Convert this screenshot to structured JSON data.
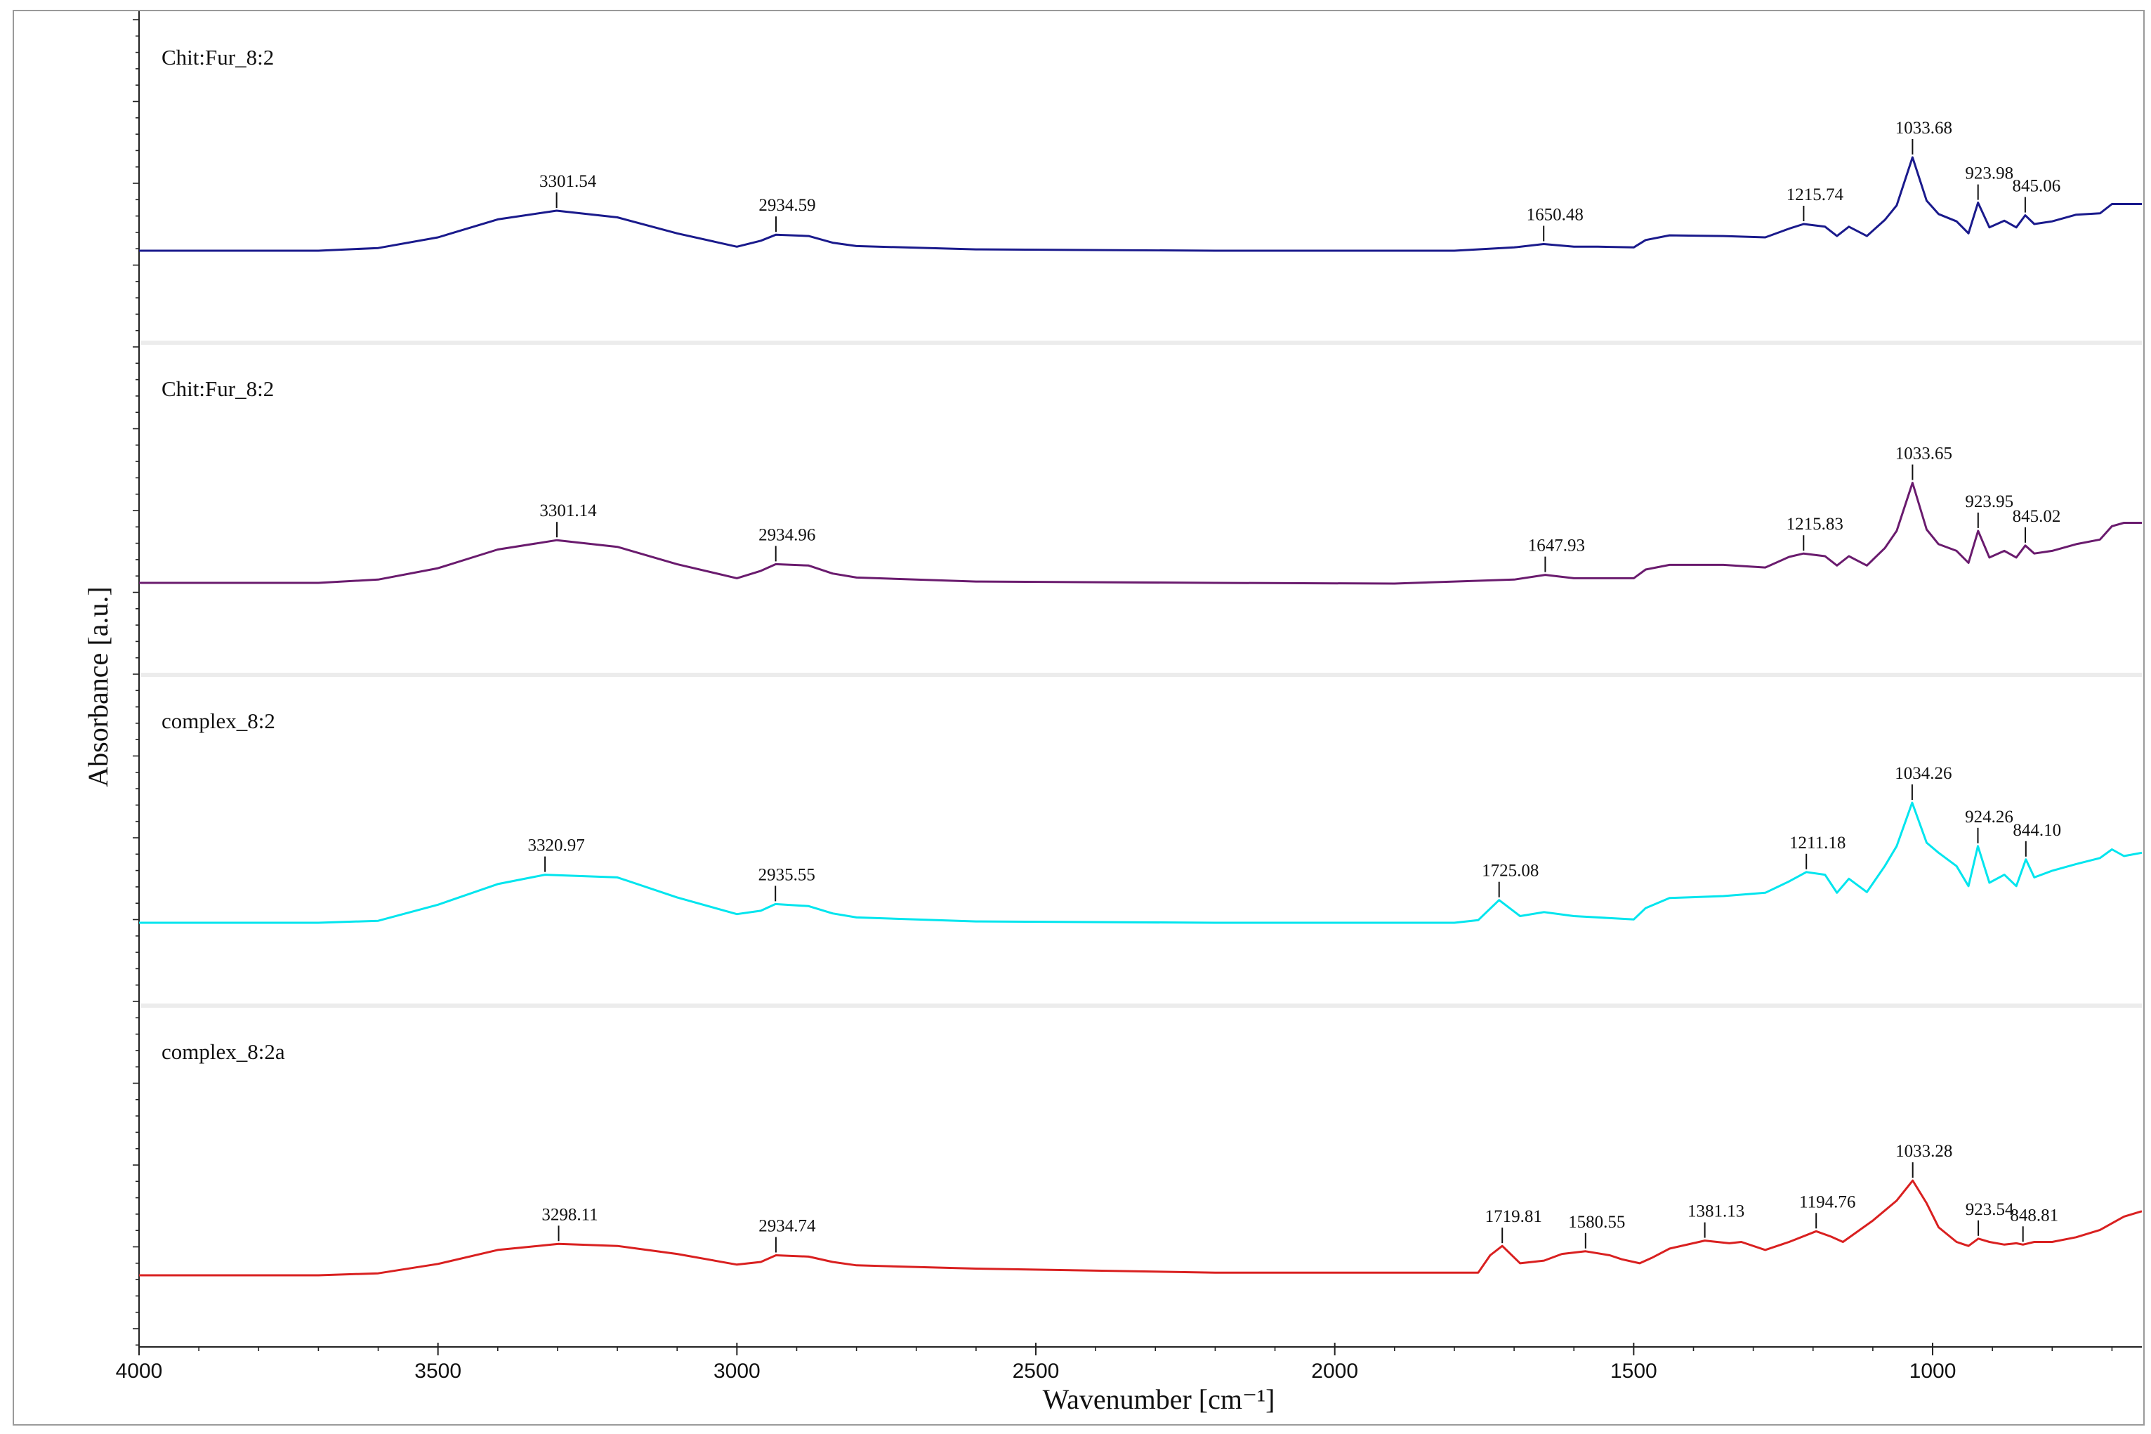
{
  "chart_data": {
    "type": "line",
    "title": "",
    "xlabel": "Wavenumber [cm⁻¹]",
    "ylabel": "Absorbance [a.u.]",
    "x_reversed": true,
    "xlim": [
      4000,
      650
    ],
    "x_ticks": [
      4000,
      3500,
      3000,
      2500,
      2000,
      1500,
      1000
    ],
    "grid": false,
    "legend": "none",
    "series": [
      {
        "name": "Chit:Fur_8:2",
        "color": "#1a1a8c",
        "x": [
          4000,
          3700,
          3600,
          3500,
          3400,
          3301.54,
          3200,
          3100,
          3000,
          2960,
          2934.59,
          2880,
          2840,
          2800,
          2600,
          2200,
          1800,
          1700,
          1650.48,
          1600,
          1560,
          1500,
          1480,
          1440,
          1350,
          1280,
          1240,
          1215.74,
          1180,
          1160,
          1140,
          1110,
          1080,
          1060,
          1033.68,
          1010,
          990,
          960,
          940,
          923.98,
          905,
          880,
          860,
          845.06,
          830,
          800,
          760,
          720,
          700,
          680,
          650
        ],
        "y": [
          0,
          0,
          0.04,
          0.2,
          0.47,
          0.6,
          0.5,
          0.26,
          0.06,
          0.15,
          0.24,
          0.22,
          0.12,
          0.07,
          0.02,
          0,
          0,
          0.05,
          0.1,
          0.06,
          0.06,
          0.05,
          0.16,
          0.23,
          0.22,
          0.2,
          0.33,
          0.4,
          0.36,
          0.22,
          0.36,
          0.22,
          0.46,
          0.68,
          1.4,
          0.75,
          0.55,
          0.44,
          0.26,
          0.72,
          0.35,
          0.45,
          0.35,
          0.53,
          0.4,
          0.44,
          0.54,
          0.56,
          0.7,
          0.7,
          0.7
        ]
      },
      {
        "name": "Chit:Fur_8:2",
        "color": "#6a1b6e",
        "x": [
          4000,
          3700,
          3600,
          3500,
          3400,
          3301.14,
          3200,
          3100,
          3000,
          2960,
          2934.96,
          2880,
          2840,
          2800,
          2600,
          2200,
          1900,
          1800,
          1700,
          1647.93,
          1600,
          1560,
          1500,
          1480,
          1440,
          1350,
          1280,
          1240,
          1215.83,
          1180,
          1160,
          1140,
          1110,
          1080,
          1060,
          1033.65,
          1010,
          990,
          960,
          940,
          923.95,
          905,
          880,
          860,
          845.02,
          830,
          800,
          760,
          720,
          700,
          680,
          650
        ],
        "y": [
          0,
          0,
          0.05,
          0.22,
          0.5,
          0.64,
          0.54,
          0.28,
          0.07,
          0.18,
          0.28,
          0.26,
          0.14,
          0.08,
          0.02,
          0,
          -0.01,
          0.02,
          0.05,
          0.12,
          0.07,
          0.07,
          0.07,
          0.2,
          0.27,
          0.27,
          0.23,
          0.39,
          0.44,
          0.4,
          0.26,
          0.4,
          0.26,
          0.52,
          0.78,
          1.5,
          0.8,
          0.58,
          0.48,
          0.3,
          0.78,
          0.38,
          0.48,
          0.38,
          0.56,
          0.44,
          0.48,
          0.58,
          0.65,
          0.85,
          0.9,
          0.9
        ]
      },
      {
        "name": "complex_8:2",
        "color": "#00e5ee",
        "x": [
          4000,
          3700,
          3600,
          3500,
          3400,
          3320.97,
          3200,
          3100,
          3000,
          2960,
          2935.55,
          2880,
          2840,
          2800,
          2600,
          2200,
          1800,
          1760,
          1725.08,
          1690,
          1650,
          1600,
          1560,
          1500,
          1480,
          1440,
          1350,
          1280,
          1240,
          1211.18,
          1180,
          1160,
          1140,
          1110,
          1080,
          1060,
          1034.26,
          1010,
          990,
          960,
          940,
          924.26,
          905,
          880,
          860,
          844.1,
          830,
          800,
          760,
          720,
          700,
          680,
          650
        ],
        "y": [
          0,
          0,
          0.03,
          0.27,
          0.58,
          0.72,
          0.68,
          0.38,
          0.13,
          0.18,
          0.28,
          0.25,
          0.14,
          0.08,
          0.02,
          0,
          0,
          0.04,
          0.34,
          0.1,
          0.16,
          0.1,
          0.08,
          0.05,
          0.22,
          0.37,
          0.4,
          0.45,
          0.62,
          0.76,
          0.72,
          0.45,
          0.66,
          0.46,
          0.85,
          1.15,
          1.8,
          1.2,
          1.05,
          0.85,
          0.55,
          1.15,
          0.6,
          0.72,
          0.55,
          0.95,
          0.68,
          0.78,
          0.88,
          0.97,
          1.1,
          1.0,
          1.05
        ]
      },
      {
        "name": "complex_8:2a",
        "color": "#d92020",
        "x": [
          4000,
          3700,
          3600,
          3500,
          3400,
          3298.11,
          3200,
          3100,
          3000,
          2960,
          2934.74,
          2880,
          2840,
          2800,
          2600,
          2200,
          1760,
          1740,
          1719.81,
          1690,
          1650,
          1620,
          1580.55,
          1540,
          1520,
          1490,
          1470,
          1440,
          1381.13,
          1340,
          1320,
          1280,
          1240,
          1194.76,
          1170,
          1150,
          1100,
          1060,
          1033.28,
          1010,
          990,
          960,
          940,
          923.54,
          905,
          880,
          860,
          848.81,
          830,
          800,
          760,
          720,
          700,
          680,
          650
        ],
        "y": [
          0,
          0,
          0.03,
          0.17,
          0.38,
          0.47,
          0.44,
          0.32,
          0.16,
          0.2,
          0.3,
          0.28,
          0.2,
          0.15,
          0.1,
          0.04,
          0.04,
          0.3,
          0.44,
          0.18,
          0.22,
          0.32,
          0.36,
          0.3,
          0.24,
          0.18,
          0.26,
          0.4,
          0.52,
          0.48,
          0.5,
          0.38,
          0.5,
          0.66,
          0.58,
          0.5,
          0.82,
          1.12,
          1.42,
          1.08,
          0.72,
          0.5,
          0.44,
          0.55,
          0.5,
          0.46,
          0.48,
          0.46,
          0.5,
          0.5,
          0.57,
          0.68,
          0.78,
          0.88,
          0.96
        ]
      }
    ],
    "panels": [
      {
        "label": "Chit:Fur_8:2",
        "peaks": [
          {
            "x": 3301.54,
            "label": "3301.54"
          },
          {
            "x": 2934.59,
            "label": "2934.59"
          },
          {
            "x": 1650.48,
            "label": "1650.48"
          },
          {
            "x": 1215.74,
            "label": "1215.74"
          },
          {
            "x": 1033.68,
            "label": "1033.68"
          },
          {
            "x": 923.98,
            "label": "923.98"
          },
          {
            "x": 845.06,
            "label": "845.06"
          }
        ]
      },
      {
        "label": "Chit:Fur_8:2",
        "peaks": [
          {
            "x": 3301.14,
            "label": "3301.14"
          },
          {
            "x": 2934.96,
            "label": "2934.96"
          },
          {
            "x": 1647.93,
            "label": "1647.93"
          },
          {
            "x": 1215.83,
            "label": "1215.83"
          },
          {
            "x": 1033.65,
            "label": "1033.65"
          },
          {
            "x": 923.95,
            "label": "923.95"
          },
          {
            "x": 845.02,
            "label": "845.02"
          }
        ]
      },
      {
        "label": "complex_8:2",
        "peaks": [
          {
            "x": 3320.97,
            "label": "3320.97"
          },
          {
            "x": 2935.55,
            "label": "2935.55"
          },
          {
            "x": 1725.08,
            "label": "1725.08"
          },
          {
            "x": 1211.18,
            "label": "1211.18"
          },
          {
            "x": 1034.26,
            "label": "1034.26"
          },
          {
            "x": 924.26,
            "label": "924.26"
          },
          {
            "x": 844.1,
            "label": "844.10"
          }
        ]
      },
      {
        "label": "complex_8:2a",
        "peaks": [
          {
            "x": 3298.11,
            "label": "3298.11"
          },
          {
            "x": 2934.74,
            "label": "2934.74"
          },
          {
            "x": 1719.81,
            "label": "1719.81"
          },
          {
            "x": 1580.55,
            "label": "1580.55"
          },
          {
            "x": 1381.13,
            "label": "1381.13"
          },
          {
            "x": 1194.76,
            "label": "1194.76"
          },
          {
            "x": 1033.28,
            "label": "1033.28"
          },
          {
            "x": 923.54,
            "label": "923.54"
          },
          {
            "x": 848.81,
            "label": "848.81"
          }
        ]
      }
    ]
  }
}
